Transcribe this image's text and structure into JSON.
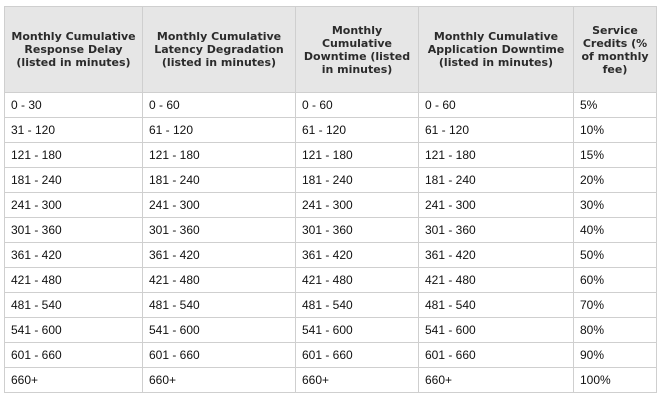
{
  "table": {
    "headers": [
      "Monthly Cumulative Response Delay (listed in minutes)",
      "Monthly Cumulative Latency Degradation (listed in minutes)",
      "Monthly Cumulative Downtime (listed in minutes)",
      "Monthly Cumulative Application Downtime (listed in minutes)",
      "Service Credits (% of monthly fee)"
    ],
    "rows": [
      [
        "0 - 30",
        "0 - 60",
        "0 - 60",
        "0 - 60",
        "5%"
      ],
      [
        "31 - 120",
        "61 - 120",
        "61 - 120",
        "61 - 120",
        "10%"
      ],
      [
        "121 - 180",
        "121 - 180",
        "121 - 180",
        "121 - 180",
        "15%"
      ],
      [
        "181 - 240",
        "181 - 240",
        "181 - 240",
        "181 - 240",
        "20%"
      ],
      [
        "241 - 300",
        "241 - 300",
        "241 - 300",
        "241 - 300",
        "30%"
      ],
      [
        "301 - 360",
        "301 - 360",
        "301 - 360",
        "301 - 360",
        "40%"
      ],
      [
        "361 - 420",
        "361 - 420",
        "361 - 420",
        "361 - 420",
        "50%"
      ],
      [
        "421 - 480",
        "421 - 480",
        "421 - 480",
        "421 - 480",
        "60%"
      ],
      [
        "481 - 540",
        "481 - 540",
        "481 - 540",
        "481 - 540",
        "70%"
      ],
      [
        "541 - 600",
        "541 - 600",
        "541 - 600",
        "541 - 600",
        "80%"
      ],
      [
        "601 - 660",
        "601 - 660",
        "601 - 660",
        "601 - 660",
        "90%"
      ],
      [
        "660+",
        "660+",
        "660+",
        "660+",
        "100%"
      ]
    ]
  }
}
